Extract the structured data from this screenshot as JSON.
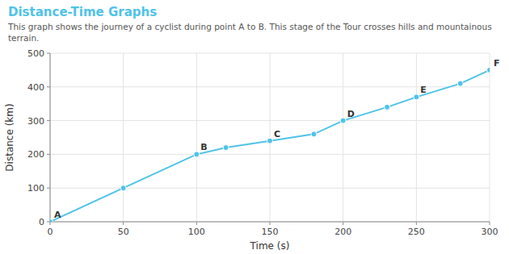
{
  "chart_data": {
    "type": "line",
    "title": "Distance-Time Graphs",
    "subtitle": "This graph shows the journey of a cyclist during point A to B. This stage of the Tour crosses hills and mountainous terrain.",
    "x_label": "Time (s)",
    "y_label": "Distance (km)",
    "x": [
      0,
      50,
      100,
      120,
      150,
      180,
      200,
      230,
      250,
      280,
      300
    ],
    "values": [
      0,
      100,
      200,
      220,
      240,
      260,
      300,
      340,
      370,
      410,
      450
    ],
    "color": "#4fc3e8",
    "marker": "circle",
    "xlim": [
      0,
      300
    ],
    "ylim": [
      0,
      500
    ],
    "xticks": [
      0,
      50,
      100,
      150,
      200,
      250,
      300
    ],
    "yticks": [
      0,
      100,
      200,
      300,
      400,
      500
    ],
    "grid": true,
    "annotations": [
      {
        "x": 0,
        "y": 0,
        "text": "A"
      },
      {
        "x": 300,
        "y": 450,
        "text": "F"
      },
      {
        "x": 250,
        "y": 370,
        "text": "E"
      },
      {
        "x": 200,
        "y": 300,
        "text": "D"
      },
      {
        "x": 150,
        "y": 240,
        "text": "C"
      },
      {
        "x": 100,
        "y": 200,
        "text": "B"
      }
    ]
  }
}
